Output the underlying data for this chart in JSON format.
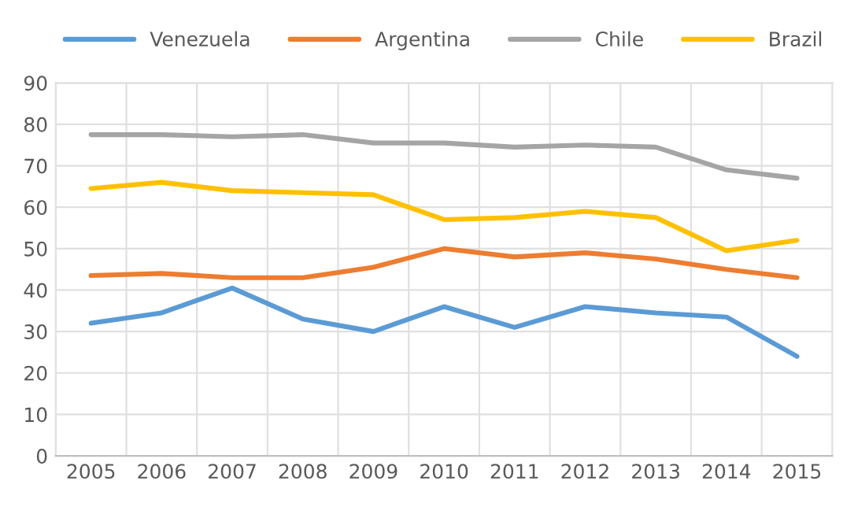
{
  "chart_data": {
    "type": "line",
    "categories": [
      "2005",
      "2006",
      "2007",
      "2008",
      "2009",
      "2010",
      "2011",
      "2012",
      "2013",
      "2014",
      "2015"
    ],
    "series": [
      {
        "name": "Venezuela",
        "color": "#5b9bd5",
        "values": [
          32,
          34.5,
          40.5,
          33,
          30,
          36,
          31,
          36,
          34.5,
          33.5,
          24
        ]
      },
      {
        "name": "Argentina",
        "color": "#ed7d31",
        "values": [
          43.5,
          44,
          43,
          43,
          45.5,
          50,
          48,
          49,
          47.5,
          45,
          43
        ]
      },
      {
        "name": "Chile",
        "color": "#a5a5a5",
        "values": [
          77.5,
          77.5,
          77,
          77.5,
          75.5,
          75.5,
          74.5,
          75,
          74.5,
          69,
          67
        ]
      },
      {
        "name": "Brazil",
        "color": "#ffc000",
        "values": [
          64.5,
          66,
          64,
          63.5,
          63,
          57,
          57.5,
          59,
          57.5,
          49.5,
          52
        ]
      }
    ],
    "ylim": [
      0,
      90
    ],
    "yticks": [
      0,
      10,
      20,
      30,
      40,
      50,
      60,
      70,
      80,
      90
    ],
    "grid": true,
    "legend": "top",
    "marker": "none",
    "line_style": "solid"
  }
}
